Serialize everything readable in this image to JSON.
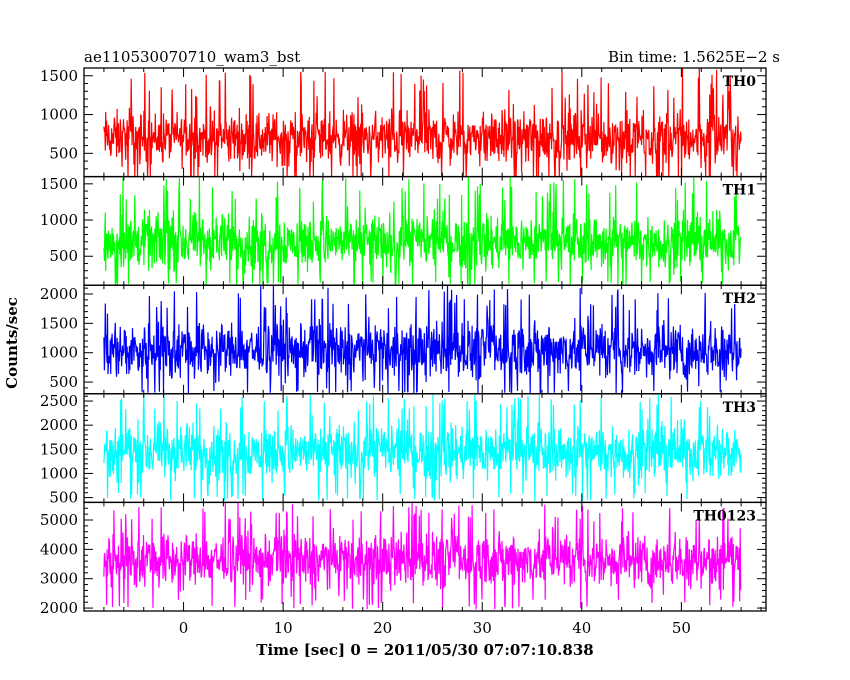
{
  "header": {
    "left_title": "ae110530070710_wam3_bst",
    "right_title": "Bin time: 1.5625E−2 s"
  },
  "xlabel": "Time [sec] 0 = 2011/05/30 07:07:10.838",
  "ylabel": "Counts/sec",
  "chart_data": {
    "type": "line",
    "title": "ae110530070710_wam3_bst",
    "subtitle": "Bin time: 1.5625E−2 s",
    "xlabel": "Time [sec] 0 = 2011/05/30 07:07:10.838",
    "ylabel": "Counts/sec",
    "xlim": [
      -10,
      58.5
    ],
    "xticks": [
      0,
      10,
      20,
      30,
      40,
      50
    ],
    "x_range_of_data": [
      -8,
      56
    ],
    "bin_time": 0.015625,
    "panels": [
      {
        "name": "TH0",
        "color": "#ff0000",
        "ylim": [
          200,
          1600
        ],
        "yticks": [
          500,
          1000,
          1500
        ],
        "mean": 600,
        "typical_min": 200,
        "typical_max": 1200,
        "peak_max": 1600
      },
      {
        "name": "TH1",
        "color": "#00ff00",
        "ylim": [
          100,
          1600
        ],
        "yticks": [
          500,
          1000,
          1500
        ],
        "mean": 600,
        "typical_min": 150,
        "typical_max": 1250,
        "peak_max": 1600
      },
      {
        "name": "TH2",
        "color": "#0000ff",
        "ylim": [
          300,
          2150
        ],
        "yticks": [
          500,
          1000,
          1500,
          2000
        ],
        "mean": 1000,
        "typical_min": 350,
        "typical_max": 1750,
        "peak_max": 2150
      },
      {
        "name": "TH3",
        "color": "#00ffff",
        "ylim": [
          400,
          2650
        ],
        "yticks": [
          500,
          1000,
          1500,
          2000,
          2500
        ],
        "mean": 1500,
        "typical_min": 600,
        "typical_max": 2300,
        "peak_max": 2650
      },
      {
        "name": "TH0123",
        "color": "#ff00ff",
        "ylim": [
          1900,
          5600
        ],
        "yticks": [
          2000,
          3000,
          4000,
          5000
        ],
        "mean": 3700,
        "typical_min": 2300,
        "typical_max": 5000,
        "peak_max": 5600
      }
    ]
  }
}
